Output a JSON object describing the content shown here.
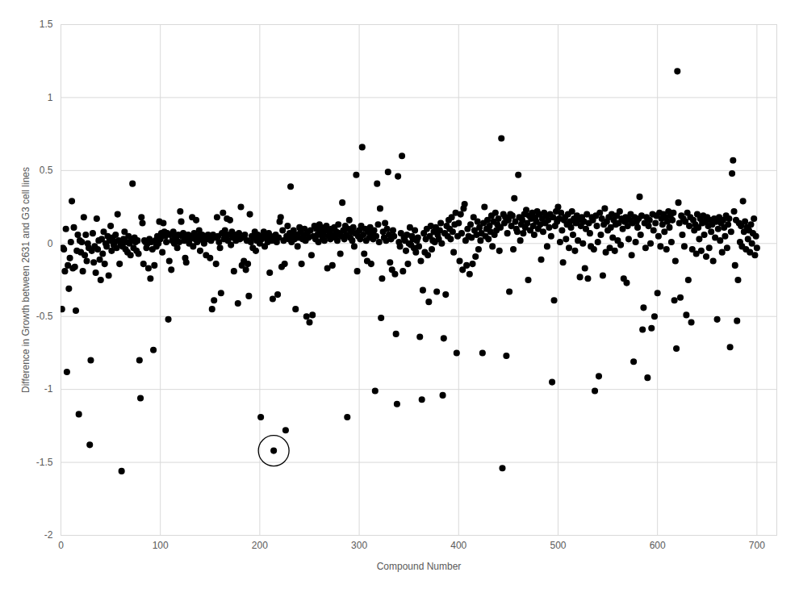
{
  "chart_data": {
    "type": "scatter",
    "xlabel": "Compound Number",
    "ylabel": "Difference in Growth between 2631 and G3 cell lines",
    "xlim": [
      0,
      720
    ],
    "xticks": [
      0,
      100,
      200,
      300,
      400,
      500,
      600,
      700
    ],
    "ylim": [
      -2,
      1.5
    ],
    "yticks": [
      -2,
      -1.5,
      -1,
      -0.5,
      0,
      0.5,
      1,
      1.5
    ],
    "grid": true,
    "color": "#000000",
    "marker": "circle",
    "circled_point": {
      "x": 214,
      "y": -1.42
    },
    "x": [
      1,
      2,
      3,
      4,
      5,
      6,
      7,
      8,
      9,
      10,
      11,
      12,
      13,
      14,
      15,
      16,
      17,
      18,
      19,
      20,
      21,
      22,
      23,
      24,
      25,
      26,
      27,
      28,
      29,
      30,
      31,
      32,
      33,
      34,
      35,
      36,
      37,
      38,
      39,
      40,
      41,
      42,
      43,
      44,
      45,
      46,
      47,
      48,
      49,
      50,
      51,
      52,
      53,
      54,
      55,
      56,
      57,
      58,
      59,
      60,
      61,
      62,
      63,
      64,
      65,
      66,
      67,
      68,
      69,
      70,
      71,
      72,
      73,
      74,
      75,
      76,
      77,
      78,
      79,
      80,
      81,
      82,
      83,
      84,
      85,
      86,
      87,
      88,
      89,
      90,
      91,
      92,
      93,
      94,
      95,
      96,
      97,
      98,
      99,
      100,
      101,
      102,
      103,
      104,
      105,
      106,
      107,
      108,
      109,
      110,
      111,
      112,
      113,
      114,
      115,
      116,
      117,
      118,
      119,
      120,
      121,
      122,
      123,
      124,
      125,
      126,
      127,
      128,
      129,
      130,
      131,
      132,
      133,
      134,
      135,
      136,
      137,
      138,
      139,
      140,
      141,
      142,
      143,
      144,
      145,
      146,
      147,
      148,
      149,
      150,
      151,
      152,
      153,
      154,
      155,
      156,
      157,
      158,
      159,
      160,
      161,
      162,
      163,
      164,
      165,
      166,
      167,
      168,
      169,
      170,
      171,
      172,
      173,
      174,
      175,
      176,
      177,
      178,
      179,
      180,
      181,
      182,
      183,
      184,
      185,
      186,
      187,
      188,
      189,
      190,
      191,
      192,
      193,
      194,
      195,
      196,
      197,
      198,
      199,
      200,
      201,
      202,
      203,
      204,
      205,
      206,
      207,
      208,
      209,
      210,
      211,
      212,
      213,
      214,
      215,
      216,
      217,
      218,
      219,
      220,
      221,
      222,
      223,
      224,
      225,
      226,
      227,
      228,
      229,
      230,
      231,
      232,
      233,
      234,
      235,
      236,
      237,
      238,
      239,
      240,
      241,
      242,
      243,
      244,
      245,
      246,
      247,
      248,
      249,
      250,
      251,
      252,
      253,
      254,
      255,
      256,
      257,
      258,
      259,
      260,
      261,
      262,
      263,
      264,
      265,
      266,
      267,
      268,
      269,
      270,
      271,
      272,
      273,
      274,
      275,
      276,
      277,
      278,
      279,
      280,
      281,
      282,
      283,
      284,
      285,
      286,
      287,
      288,
      289,
      290,
      291,
      292,
      293,
      294,
      295,
      296,
      297,
      298,
      299,
      300,
      301,
      302,
      303,
      304,
      305,
      306,
      307,
      308,
      309,
      310,
      311,
      312,
      313,
      314,
      315,
      316,
      317,
      318,
      319,
      320,
      321,
      322,
      323,
      324,
      325,
      326,
      327,
      328,
      329,
      330,
      331,
      332,
      333,
      334,
      335,
      336,
      337,
      338,
      339,
      340,
      341,
      342,
      343,
      344,
      345,
      346,
      347,
      348,
      349,
      350,
      351,
      352,
      353,
      354,
      355,
      356,
      357,
      358,
      359,
      360,
      361,
      362,
      363,
      364,
      365,
      366,
      367,
      368,
      369,
      370,
      371,
      372,
      373,
      374,
      375,
      376,
      377,
      378,
      379,
      380,
      381,
      382,
      383,
      384,
      385,
      386,
      387,
      388,
      389,
      390,
      391,
      392,
      393,
      394,
      395,
      396,
      397,
      398,
      399,
      400,
      401,
      402,
      403,
      404,
      405,
      406,
      407,
      408,
      409,
      410,
      411,
      412,
      413,
      414,
      415,
      416,
      417,
      418,
      419,
      420,
      421,
      422,
      423,
      424,
      425,
      426,
      427,
      428,
      429,
      430,
      431,
      432,
      433,
      434,
      435,
      436,
      437,
      438,
      439,
      440,
      441,
      442,
      443,
      444,
      445,
      446,
      447,
      448,
      449,
      450,
      451,
      452,
      453,
      454,
      455,
      456,
      457,
      458,
      459,
      460,
      461,
      462,
      463,
      464,
      465,
      466,
      467,
      468,
      469,
      470,
      471,
      472,
      473,
      474,
      475,
      476,
      477,
      478,
      479,
      480,
      481,
      482,
      483,
      484,
      485,
      486,
      487,
      488,
      489,
      490,
      491,
      492,
      493,
      494,
      495,
      496,
      497,
      498,
      499,
      500,
      501,
      502,
      503,
      504,
      505,
      506,
      507,
      508,
      509,
      510,
      511,
      512,
      513,
      514,
      515,
      516,
      517,
      518,
      519,
      520,
      521,
      522,
      523,
      524,
      525,
      526,
      527,
      528,
      529,
      530,
      531,
      532,
      533,
      534,
      535,
      536,
      537,
      538,
      539,
      540,
      541,
      542,
      543,
      544,
      545,
      546,
      547,
      548,
      549,
      550,
      551,
      552,
      553,
      554,
      555,
      556,
      557,
      558,
      559,
      560,
      561,
      562,
      563,
      564,
      565,
      566,
      567,
      568,
      569,
      570,
      571,
      572,
      573,
      574,
      575,
      576,
      577,
      578,
      579,
      580,
      581,
      582,
      583,
      584,
      585,
      586,
      587,
      588,
      589,
      590,
      591,
      592,
      593,
      594,
      595,
      596,
      597,
      598,
      599,
      600,
      601,
      602,
      603,
      604,
      605,
      606,
      607,
      608,
      609,
      610,
      611,
      612,
      613,
      614,
      615,
      616,
      617,
      618,
      619,
      620,
      621,
      622,
      623,
      624,
      625,
      626,
      627,
      628,
      629,
      630,
      631,
      632,
      633,
      634,
      635,
      636,
      637,
      638,
      639,
      640,
      641,
      642,
      643,
      644,
      645,
      646,
      647,
      648,
      649,
      650,
      651,
      652,
      653,
      654,
      655,
      656,
      657,
      658,
      659,
      660,
      661,
      662,
      663,
      664,
      665,
      666,
      667,
      668,
      669,
      670,
      671,
      672,
      673,
      674,
      675,
      676,
      677,
      678,
      679,
      680,
      681,
      682,
      683,
      684,
      685,
      686,
      687,
      688,
      689,
      690,
      691,
      692,
      693,
      694,
      695,
      696,
      697,
      698,
      699,
      700
    ],
    "values": [
      -0.45,
      -0.03,
      -0.04,
      -0.19,
      0.1,
      -0.88,
      -0.15,
      -0.31,
      -0.1,
      0.01,
      0.29,
      -0.17,
      0.11,
      -0.16,
      -0.46,
      -0.05,
      0.06,
      -1.17,
      0.02,
      -0.06,
      0.01,
      -0.19,
      0.18,
      -0.08,
      0.06,
      -0.12,
      0.0,
      -0.03,
      -1.38,
      -0.8,
      -0.05,
      0.07,
      -0.13,
      -0.02,
      -0.2,
      0.17,
      -0.04,
      0.02,
      -0.11,
      -0.25,
      0.03,
      -0.07,
      0.08,
      -0.14,
      0.0,
      -0.02,
      0.05,
      -0.22,
      0.02,
      0.12,
      -0.05,
      0.04,
      -0.01,
      0.01,
      0.06,
      -0.03,
      0.2,
      0.02,
      -0.14,
      0.0,
      -1.56,
      -0.02,
      0.03,
      0.08,
      -0.04,
      0.01,
      -0.06,
      0.05,
      0.0,
      -0.08,
      0.02,
      0.41,
      -0.03,
      0.04,
      0.01,
      -0.05,
      0.02,
      -0.07,
      -0.8,
      -1.06,
      0.18,
      0.14,
      -0.14,
      0.02,
      0.01,
      -0.03,
      0.0,
      -0.17,
      0.03,
      -0.24,
      0.01,
      -0.04,
      -0.73,
      -0.15,
      0.02,
      -0.02,
      0.05,
      0.0,
      0.15,
      0.03,
      0.07,
      -0.06,
      0.14,
      0.08,
      0.05,
      0.01,
      0.07,
      -0.52,
      -0.12,
      0.06,
      -0.18,
      0.02,
      0.08,
      0.0,
      0.05,
      0.03,
      -0.03,
      0.06,
      0.01,
      0.22,
      0.15,
      0.05,
      0.07,
      0.02,
      -0.1,
      -0.13,
      0.04,
      0.06,
      0.0,
      0.03,
      0.05,
      0.18,
      -0.02,
      0.07,
      0.03,
      0.16,
      0.01,
      0.05,
      0.09,
      -0.05,
      0.04,
      0.06,
      0.02,
      0.0,
      0.05,
      -0.08,
      0.03,
      0.06,
      0.04,
      -0.1,
      0.02,
      -0.45,
      0.06,
      -0.39,
      0.04,
      -0.14,
      0.18,
      0.05,
      0.01,
      -0.03,
      -0.34,
      0.07,
      0.21,
      0.03,
      0.09,
      0.05,
      0.17,
      0.02,
      0.06,
      0.16,
      -0.01,
      0.08,
      0.04,
      -0.19,
      0.06,
      0.02,
      0.05,
      -0.41,
      0.07,
      0.03,
      0.25,
      -0.15,
      0.04,
      -0.12,
      0.06,
      -0.18,
      0.02,
      -0.14,
      -0.36,
      0.2,
      0.01,
      0.05,
      -0.03,
      0.04,
      0.08,
      -0.05,
      0.02,
      0.06,
      0.03,
      0.0,
      -1.19,
      0.03,
      0.05,
      0.08,
      -0.02,
      0.06,
      0.04,
      0.01,
      0.07,
      -0.2,
      0.05,
      0.02,
      -0.38,
      -1.42,
      0.03,
      0.06,
      0.01,
      -0.35,
      0.04,
      0.15,
      0.18,
      -0.16,
      0.09,
      0.02,
      -0.14,
      -1.28,
      0.05,
      0.12,
      0.03,
      0.07,
      0.39,
      0.01,
      0.05,
      0.09,
      0.03,
      -0.45,
      0.06,
      -0.02,
      0.04,
      0.11,
      0.08,
      -0.14,
      0.03,
      0.06,
      0.1,
      0.02,
      -0.5,
      0.07,
      0.04,
      -0.54,
      0.09,
      -0.08,
      -0.49,
      0.05,
      0.12,
      0.03,
      0.1,
      0.06,
      0.01,
      0.13,
      0.08,
      0.11,
      0.04,
      0.07,
      0.02,
      0.09,
      0.12,
      -0.17,
      0.05,
      0.08,
      0.03,
      0.1,
      -0.15,
      0.06,
      0.11,
      0.04,
      0.08,
      0.02,
      0.13,
      0.07,
      -0.07,
      0.05,
      0.28,
      0.09,
      0.03,
      0.12,
      0.06,
      -1.19,
      0.1,
      0.16,
      0.04,
      0.08,
      0.02,
      0.11,
      -0.02,
      0.07,
      0.47,
      -0.19,
      0.05,
      0.09,
      0.03,
      0.12,
      0.66,
      0.06,
      -0.07,
      0.1,
      0.02,
      -0.12,
      0.08,
      0.04,
      0.11,
      -0.14,
      0.07,
      0.03,
      0.09,
      -1.01,
      0.05,
      0.41,
      0.13,
      0.01,
      0.24,
      -0.51,
      -0.24,
      0.08,
      0.04,
      0.14,
      0.02,
      0.1,
      0.49,
      0.06,
      -0.13,
      0.03,
      -0.18,
      0.09,
      0.05,
      -0.21,
      -0.62,
      -1.1,
      0.46,
      0.01,
      -0.02,
      0.07,
      0.6,
      -0.19,
      0.04,
      0.02,
      -0.05,
      0.06,
      -0.14,
      0.0,
      0.11,
      -0.01,
      0.05,
      0.03,
      -0.03,
      0.09,
      -0.06,
      0.02,
      0.04,
      -0.02,
      -0.64,
      -0.12,
      -1.07,
      -0.32,
      0.07,
      -0.06,
      0.03,
      0.1,
      -0.08,
      -0.4,
      0.05,
      0.12,
      -0.04,
      0.02,
      0.08,
      0.01,
      0.11,
      -0.33,
      0.06,
      0.03,
      0.09,
      0.14,
      0.0,
      -1.04,
      -0.65,
      0.07,
      -0.35,
      0.12,
      0.05,
      0.16,
      0.1,
      0.03,
      0.18,
      0.08,
      -0.06,
      0.13,
      0.21,
      -0.75,
      0.05,
      0.14,
      -0.12,
      0.2,
      0.07,
      -0.18,
      0.24,
      0.27,
      0.02,
      -0.15,
      0.1,
      0.05,
      -0.21,
      0.13,
      0.04,
      -0.14,
      0.18,
      0.09,
      -0.09,
      0.06,
      0.15,
      -0.04,
      0.11,
      0.02,
      0.07,
      -0.75,
      0.14,
      0.25,
      0.05,
      0.1,
      0.16,
      0.03,
      0.12,
      0.08,
      0.19,
      -0.02,
      0.15,
      0.06,
      0.21,
      0.09,
      0.13,
      0.17,
      -0.05,
      0.11,
      0.72,
      -1.54,
      0.2,
      0.14,
      0.18,
      -0.77,
      0.07,
      0.16,
      -0.33,
      0.2,
      0.12,
      0.19,
      -0.04,
      0.31,
      0.15,
      0.1,
      0.08,
      0.47,
      0.18,
      0.02,
      0.13,
      0.16,
      0.07,
      0.2,
      0.11,
      0.23,
      0.14,
      -0.25,
      0.19,
      0.09,
      0.17,
      0.21,
      0.12,
      0.06,
      0.18,
      0.15,
      0.22,
      0.1,
      0.2,
      0.13,
      -0.11,
      0.17,
      0.08,
      0.21,
      0.14,
      0.19,
      -0.02,
      0.16,
      0.11,
      0.2,
      0.05,
      -0.95,
      0.18,
      -0.39,
      0.12,
      0.22,
      0.15,
      0.25,
      0.17,
      0.01,
      0.21,
      0.09,
      -0.13,
      0.16,
      0.18,
      0.03,
      0.13,
      0.2,
      -0.03,
      0.15,
      0.11,
      0.22,
      0.06,
      0.17,
      -0.05,
      0.14,
      0.19,
      0.02,
      0.16,
      -0.23,
      0.12,
      0.18,
      0.0,
      0.15,
      -0.17,
      0.1,
      0.2,
      -0.24,
      0.14,
      0.07,
      -0.02,
      0.18,
      0.16,
      -0.04,
      -1.01,
      0.19,
      0.12,
      0.01,
      -0.91,
      0.21,
      0.06,
      0.17,
      -0.22,
      0.13,
      0.24,
      -0.06,
      0.15,
      0.09,
      0.18,
      -0.03,
      0.11,
      0.2,
      0.04,
      0.16,
      -0.05,
      0.13,
      0.19,
      0.02,
      0.14,
      0.22,
      -0.01,
      0.17,
      0.1,
      -0.24,
      0.15,
      0.18,
      -0.27,
      0.12,
      0.03,
      0.16,
      0.2,
      -0.08,
      0.14,
      -0.81,
      0.18,
      0.01,
      0.15,
      0.11,
      0.17,
      0.32,
      0.06,
      0.19,
      -0.59,
      -0.44,
      0.14,
      -0.03,
      0.18,
      -0.92,
      0.12,
      0.16,
      0.0,
      -0.58,
      0.2,
      0.09,
      -0.5,
      0.14,
      0.19,
      -0.34,
      0.05,
      0.21,
      -0.02,
      0.17,
      0.13,
      0.2,
      0.08,
      0.18,
      -0.04,
      0.15,
      0.22,
      0.11,
      0.19,
      0.01,
      0.16,
      0.21,
      -0.39,
      -0.12,
      -0.72,
      1.18,
      0.28,
      0.14,
      -0.37,
      0.19,
      0.06,
      0.17,
      -0.02,
      0.15,
      -0.49,
      0.21,
      -0.25,
      0.12,
      0.18,
      -0.54,
      -0.04,
      0.16,
      0.09,
      0.13,
      -0.07,
      0.2,
      0.11,
      0.03,
      0.17,
      -0.05,
      0.14,
      0.19,
      0.06,
      0.15,
      -0.09,
      0.18,
      0.12,
      -0.03,
      0.16,
      0.08,
      0.13,
      -0.12,
      0.17,
      0.04,
      0.15,
      -0.52,
      0.1,
      0.18,
      0.02,
      0.14,
      -0.06,
      0.16,
      0.11,
      0.05,
      0.19,
      -0.03,
      0.13,
      0.17,
      -0.71,
      0.08,
      0.48,
      0.57,
      0.22,
      -0.15,
      0.16,
      -0.53,
      -0.25,
      0.14,
      0.01,
      0.12,
      -0.02,
      0.29,
      0.08,
      0.15,
      -0.04,
      0.11,
      0.03,
      0.09,
      -0.06,
      0.13,
      0.0,
      0.07,
      0.17,
      -0.08,
      0.05,
      -0.03
    ]
  }
}
